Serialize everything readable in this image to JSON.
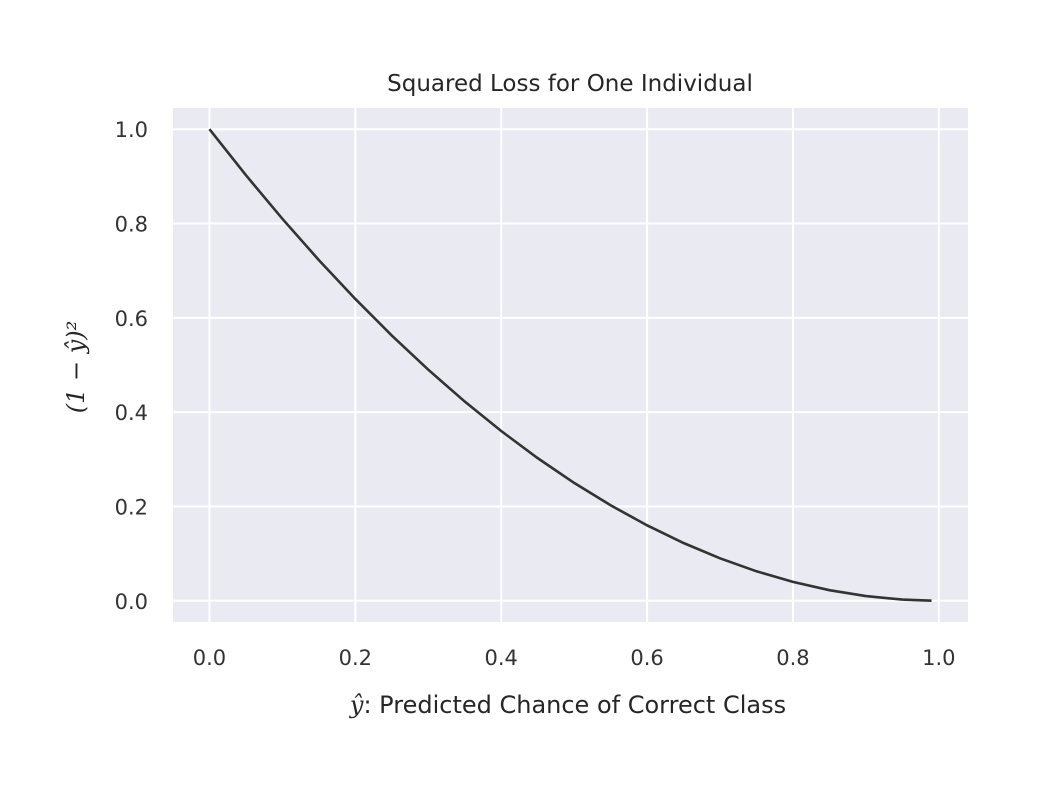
{
  "chart_data": {
    "type": "line",
    "title": "Squared Loss for One Individual",
    "xlabel_var": "ŷ",
    "xlabel_text": ": Predicted Chance of Correct Class",
    "ylabel": "(1 − ŷ)²",
    "xlim": [
      -0.05,
      1.04
    ],
    "ylim": [
      -0.045,
      1.045
    ],
    "xticks": [
      0.0,
      0.2,
      0.4,
      0.6,
      0.8,
      1.0
    ],
    "xtick_labels": [
      "0.0",
      "0.2",
      "0.4",
      "0.6",
      "0.8",
      "1.0"
    ],
    "yticks": [
      0.0,
      0.2,
      0.4,
      0.6,
      0.8,
      1.0
    ],
    "ytick_labels": [
      "0.0",
      "0.2",
      "0.4",
      "0.6",
      "0.8",
      "1.0"
    ],
    "grid": true,
    "colors": {
      "background": "#eaeaf2",
      "grid": "#ffffff",
      "line": "#333333"
    },
    "series": [
      {
        "x": [
          0.0,
          0.05,
          0.1,
          0.15,
          0.2,
          0.25,
          0.3,
          0.35,
          0.4,
          0.45,
          0.5,
          0.55,
          0.6,
          0.65,
          0.7,
          0.75,
          0.8,
          0.85,
          0.9,
          0.95,
          0.99
        ],
        "y": [
          1.0,
          0.9025,
          0.81,
          0.7225,
          0.64,
          0.5625,
          0.49,
          0.4225,
          0.36,
          0.3025,
          0.25,
          0.2025,
          0.16,
          0.1225,
          0.09,
          0.0625,
          0.04,
          0.0225,
          0.01,
          0.0025,
          0.0001
        ]
      }
    ]
  }
}
